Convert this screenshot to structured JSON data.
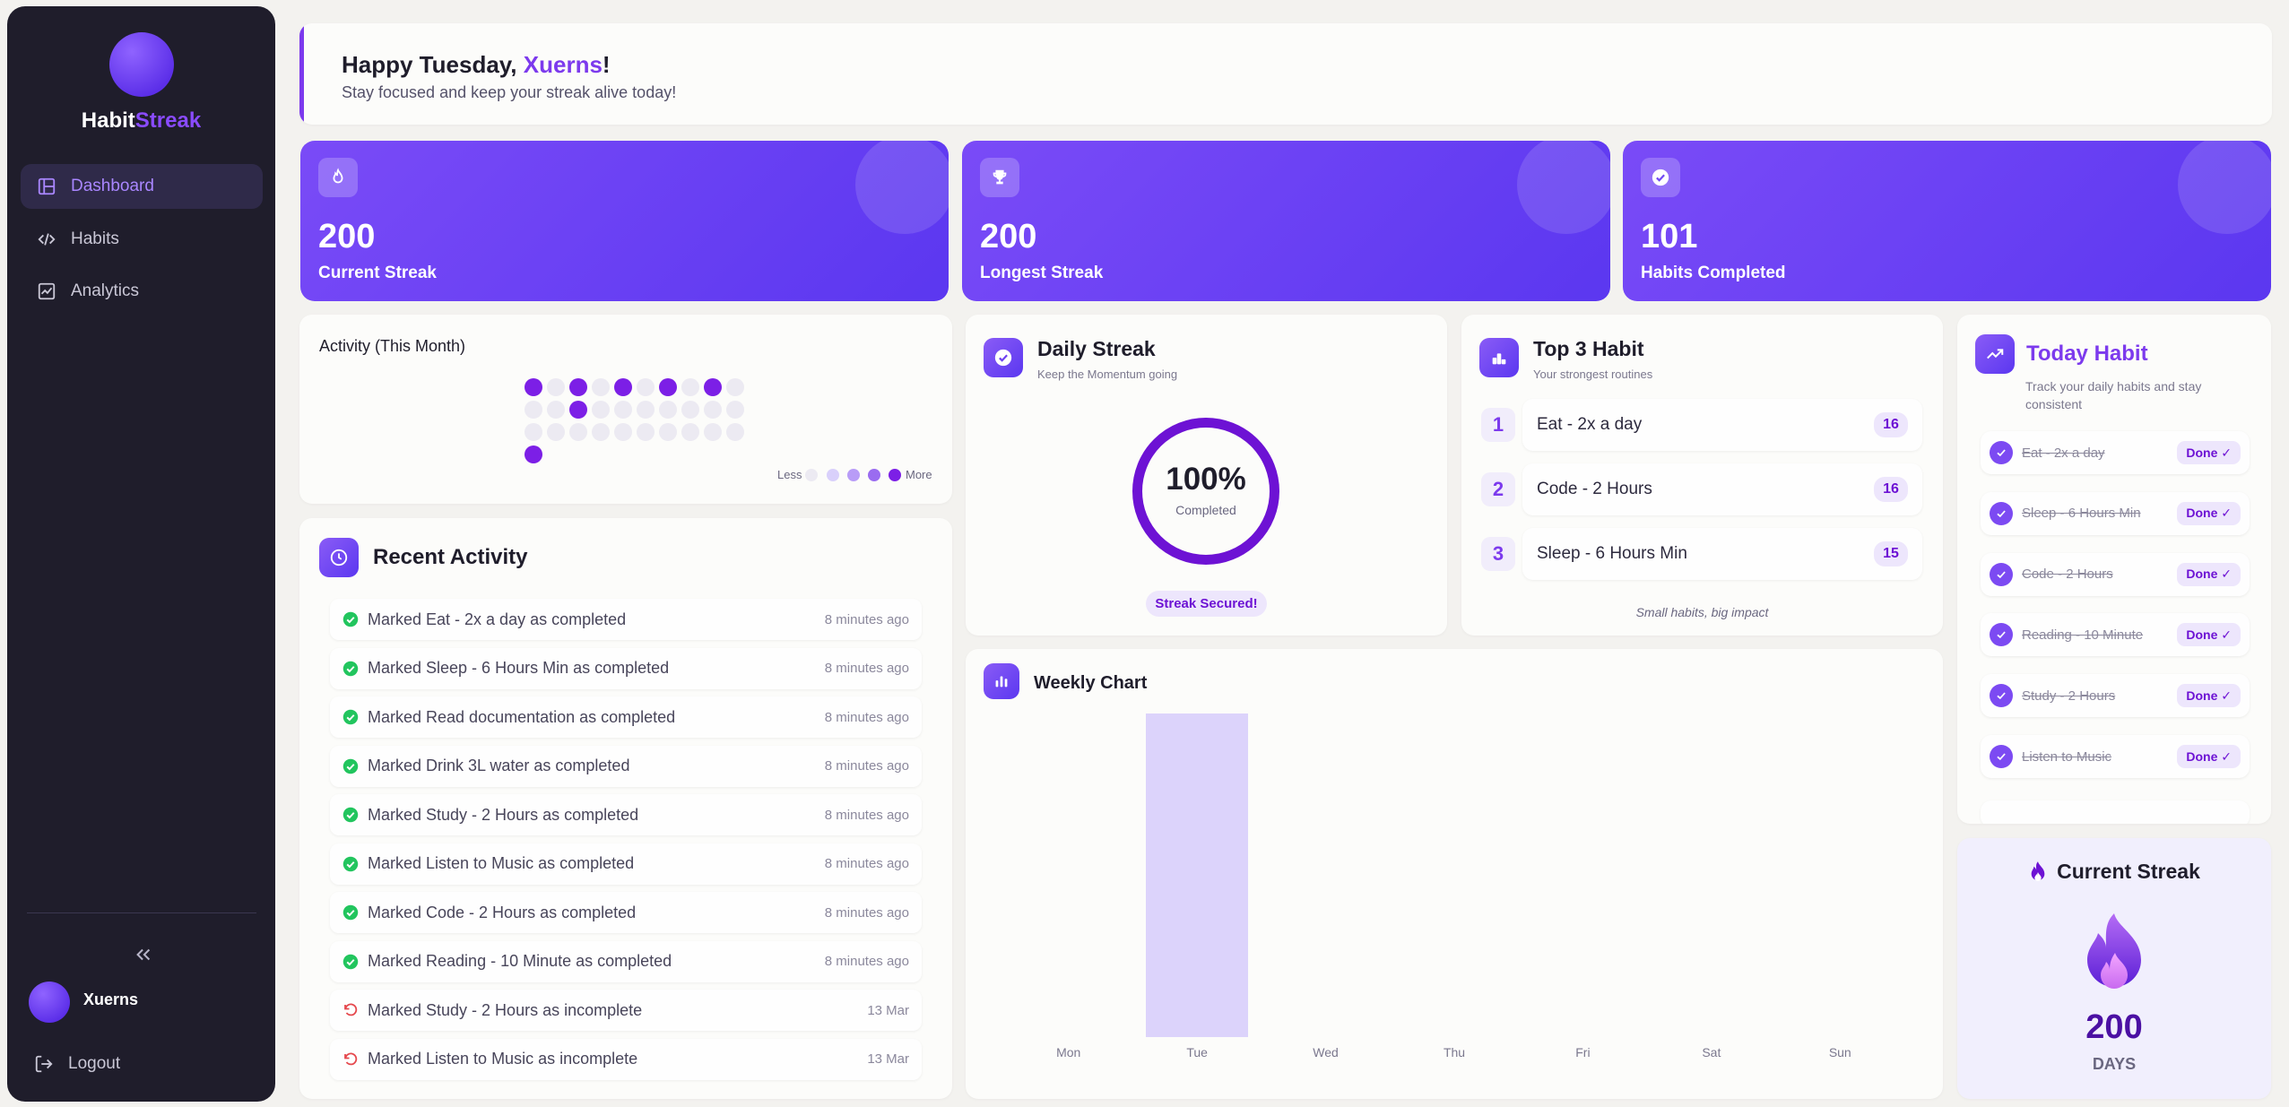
{
  "app": {
    "name_part1": "Habit",
    "name_part2": "Streak"
  },
  "sidebar": {
    "items": [
      {
        "label": "Dashboard",
        "icon": "layout-icon",
        "active": true
      },
      {
        "label": "Habits",
        "icon": "code-icon",
        "active": false
      },
      {
        "label": "Analytics",
        "icon": "chart-icon",
        "active": false
      }
    ],
    "user_name": "Xuerns",
    "logout_label": "Logout"
  },
  "greeting": {
    "prefix": "Happy Tuesday, ",
    "name": "Xuerns",
    "suffix": "!",
    "message": "Stay focused and keep your streak alive today!"
  },
  "stats": [
    {
      "value": "200",
      "label": "Current Streak",
      "icon": "flame-icon"
    },
    {
      "value": "200",
      "label": "Longest Streak",
      "icon": "trophy-icon"
    },
    {
      "value": "101",
      "label": "Habits Completed",
      "icon": "check-circle-icon"
    }
  ],
  "activity": {
    "title": "Activity (This Month)",
    "legend_less": "Less",
    "legend_more": "More",
    "legend_colors": [
      "#eceaf2",
      "#d9d0fb",
      "#b89cf7",
      "#9a6cf0",
      "#7c1fe6"
    ],
    "grid": [
      [
        1,
        0,
        1,
        0,
        1,
        0,
        1,
        0,
        1,
        0
      ],
      [
        0,
        0,
        1,
        0,
        0,
        0,
        0,
        0,
        0,
        0
      ],
      [
        0,
        0,
        0,
        0,
        0,
        0,
        0,
        0,
        0,
        0
      ],
      [
        1
      ]
    ]
  },
  "recent": {
    "title": "Recent Activity",
    "items": [
      {
        "text": "Marked Eat - 2x a day as completed",
        "time": "8 minutes ago",
        "status": "completed"
      },
      {
        "text": "Marked Sleep - 6 Hours Min as completed",
        "time": "8 minutes ago",
        "status": "completed"
      },
      {
        "text": "Marked Read documentation as completed",
        "time": "8 minutes ago",
        "status": "completed"
      },
      {
        "text": "Marked Drink 3L water as completed",
        "time": "8 minutes ago",
        "status": "completed"
      },
      {
        "text": "Marked Study - 2 Hours as completed",
        "time": "8 minutes ago",
        "status": "completed"
      },
      {
        "text": "Marked Listen to Music as completed",
        "time": "8 minutes ago",
        "status": "completed"
      },
      {
        "text": "Marked Code - 2 Hours as completed",
        "time": "8 minutes ago",
        "status": "completed"
      },
      {
        "text": "Marked Reading - 10 Minute as completed",
        "time": "8 minutes ago",
        "status": "completed"
      },
      {
        "text": "Marked Study - 2 Hours as incomplete",
        "time": "13 Mar",
        "status": "incomplete"
      },
      {
        "text": "Marked Listen to Music as incomplete",
        "time": "13 Mar",
        "status": "incomplete"
      }
    ]
  },
  "daily": {
    "title": "Daily Streak",
    "subtitle": "Keep the Momentum going",
    "percent": "100%",
    "percent_label": "Completed",
    "badge": "Streak Secured!"
  },
  "top3": {
    "title": "Top 3 Habit",
    "subtitle": "Your strongest routines",
    "items": [
      {
        "rank": "1",
        "name": "Eat - 2x a day",
        "count": "16"
      },
      {
        "rank": "2",
        "name": "Code - 2 Hours",
        "count": "16"
      },
      {
        "rank": "3",
        "name": "Sleep - 6 Hours Min",
        "count": "15"
      }
    ],
    "footer": "Small habits, big impact"
  },
  "weekly": {
    "title": "Weekly Chart"
  },
  "chart_data": {
    "type": "bar",
    "categories": [
      "Mon",
      "Tue",
      "Wed",
      "Thu",
      "Fri",
      "Sat",
      "Sun"
    ],
    "values": [
      0,
      1,
      0,
      0,
      0,
      0,
      0
    ],
    "ylim": [
      0,
      1
    ],
    "bar_color": "#dcd3fb",
    "grid": false
  },
  "today": {
    "title": "Today Habit",
    "subtitle": "Track your daily habits and stay consistent",
    "items": [
      {
        "name": "Eat - 2x a day",
        "status": "Done ✓"
      },
      {
        "name": "Sleep - 6 Hours Min",
        "status": "Done ✓"
      },
      {
        "name": "Code - 2 Hours",
        "status": "Done ✓"
      },
      {
        "name": "Reading - 10 Minute",
        "status": "Done ✓"
      },
      {
        "name": "Study - 2 Hours",
        "status": "Done ✓"
      },
      {
        "name": "Listen to Music",
        "status": "Done ✓"
      }
    ]
  },
  "current_streak": {
    "title": "Current Streak",
    "days": "200",
    "days_label": "DAYS"
  },
  "colors": {
    "accent": "#7c3aed",
    "sidebar_bg": "#1f1d2b",
    "success": "#22c55e",
    "danger": "#e5484d"
  }
}
